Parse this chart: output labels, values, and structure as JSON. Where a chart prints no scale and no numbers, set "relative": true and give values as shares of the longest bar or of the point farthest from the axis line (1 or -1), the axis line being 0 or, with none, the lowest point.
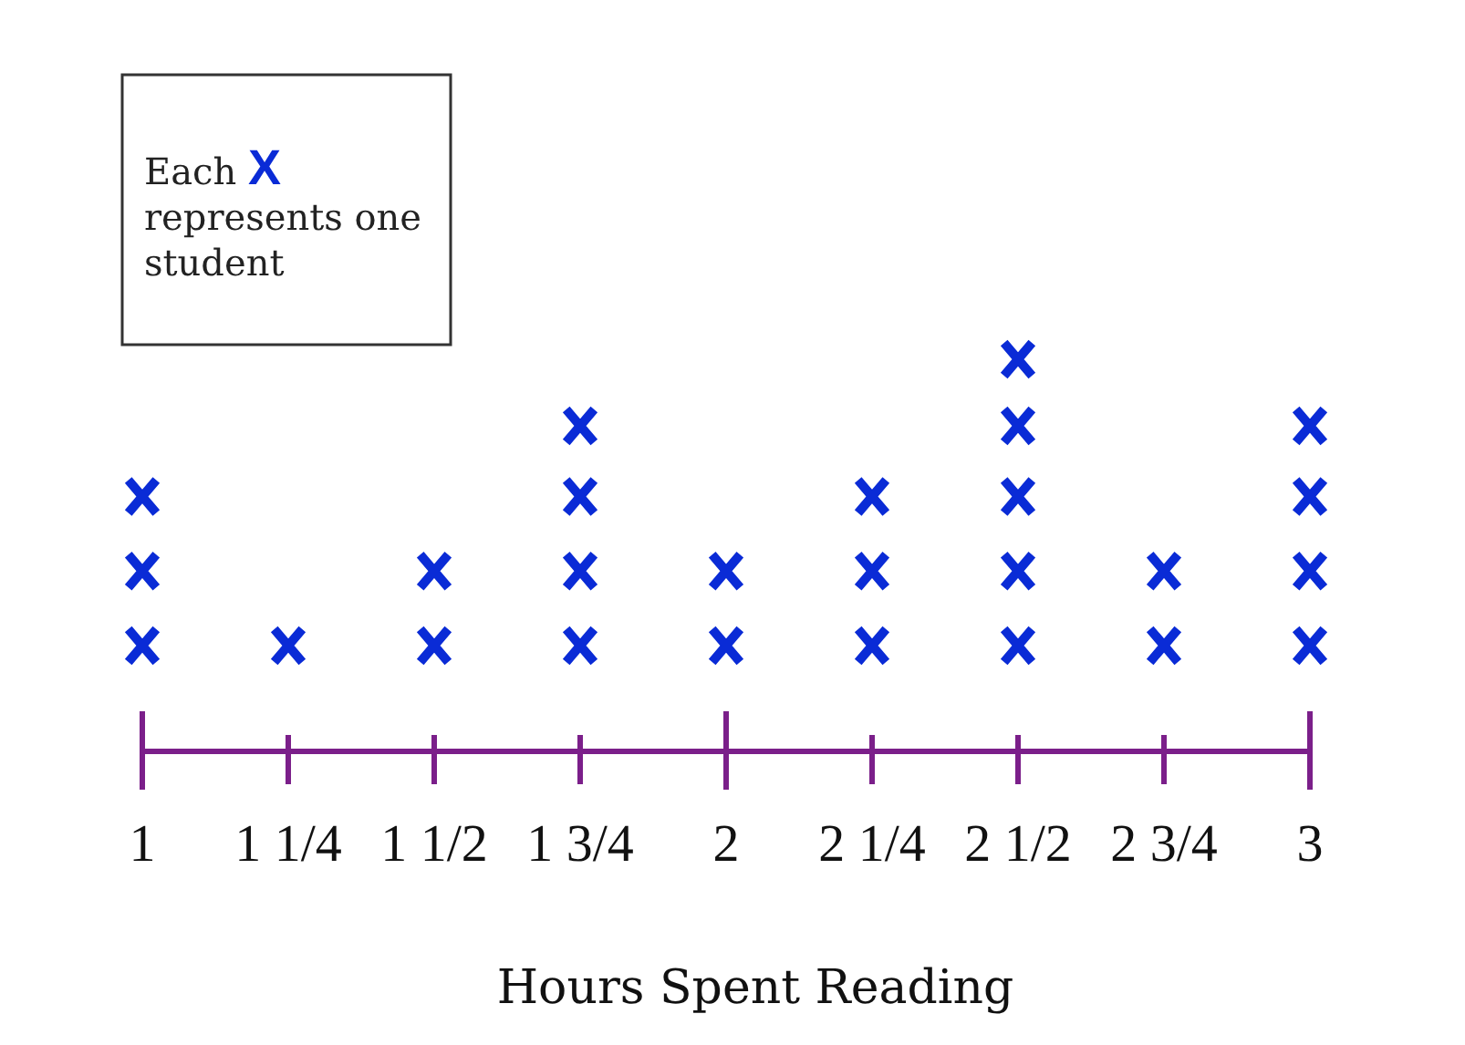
{
  "chart_data": {
    "type": "scatter",
    "xlabel": "Hours Spent Reading",
    "annotations": [
      "Each X represents one student"
    ],
    "relative": true,
    "series": [
      {
        "color": "#0a2bd6",
        "x": [
          1,
          1,
          1,
          1.25,
          1.5,
          1.5,
          1.75,
          1.75,
          1.75,
          1.75,
          2,
          2,
          2.25,
          2.25,
          2.25,
          2.5,
          2.5,
          2.5,
          2.5,
          2.5,
          2.75,
          2.75,
          3,
          3,
          3,
          3
        ],
        "values": [
          0.27,
          0.46,
          0.65,
          0.27,
          0.27,
          0.46,
          0.27,
          0.46,
          0.65,
          0.83,
          0.27,
          0.46,
          0.27,
          0.46,
          0.65,
          0.27,
          0.46,
          0.65,
          0.83,
          1,
          0.27,
          0.46,
          0.27,
          0.46,
          0.65,
          0.83
        ]
      }
    ],
    "marker": "cross",
    "xlim": [
      1,
      3
    ],
    "xticks": [
      1,
      {
        "value": 1.25,
        "label": "1 1/4"
      },
      {
        "value": 1.5,
        "label": "1 1/2"
      },
      {
        "value": 1.75,
        "label": "1 3/4"
      },
      2,
      {
        "value": 2.25,
        "label": "2 1/4"
      },
      {
        "value": 2.5,
        "label": "2 1/2"
      },
      {
        "value": 2.75,
        "label": "2 3/4"
      },
      3
    ],
    "tick_labels": "x"
  }
}
